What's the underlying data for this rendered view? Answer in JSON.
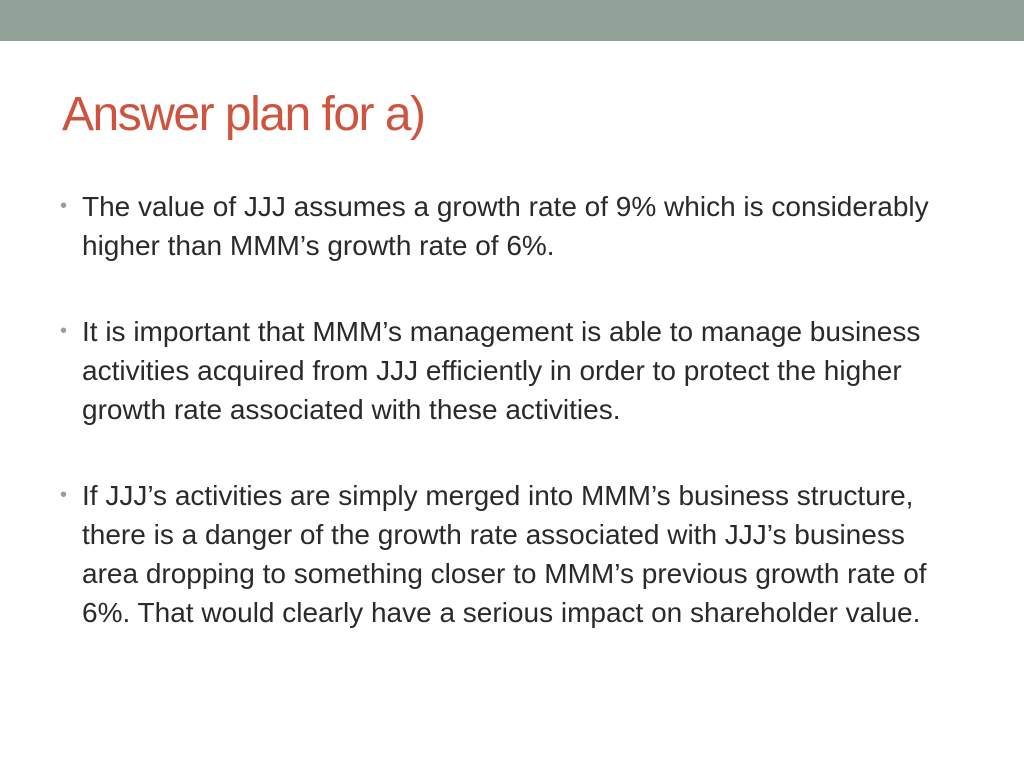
{
  "slide": {
    "title": "Answer plan for a)",
    "bullets": [
      {
        "text": "The value of JJJ assumes a growth rate of 9% which is considerably higher than MMM’s growth rate of 6%."
      },
      {
        "text": " It is important that MMM’s management is able to manage business activities acquired from JJJ efficiently in order to protect the higher growth rate associated with these activities."
      },
      {
        "text": " If JJJ’s activities are simply merged into MMM’s business structure, there is a danger of the growth rate associated with JJJ’s business area dropping to something closer to MMM’s previous growth rate of 6%. That would clearly have a serious impact on shareholder value."
      }
    ],
    "bullet_symbol": "•"
  },
  "colors": {
    "accent_band": "#93a299",
    "title": "#cf543f",
    "body_text": "#2a2a2a"
  }
}
